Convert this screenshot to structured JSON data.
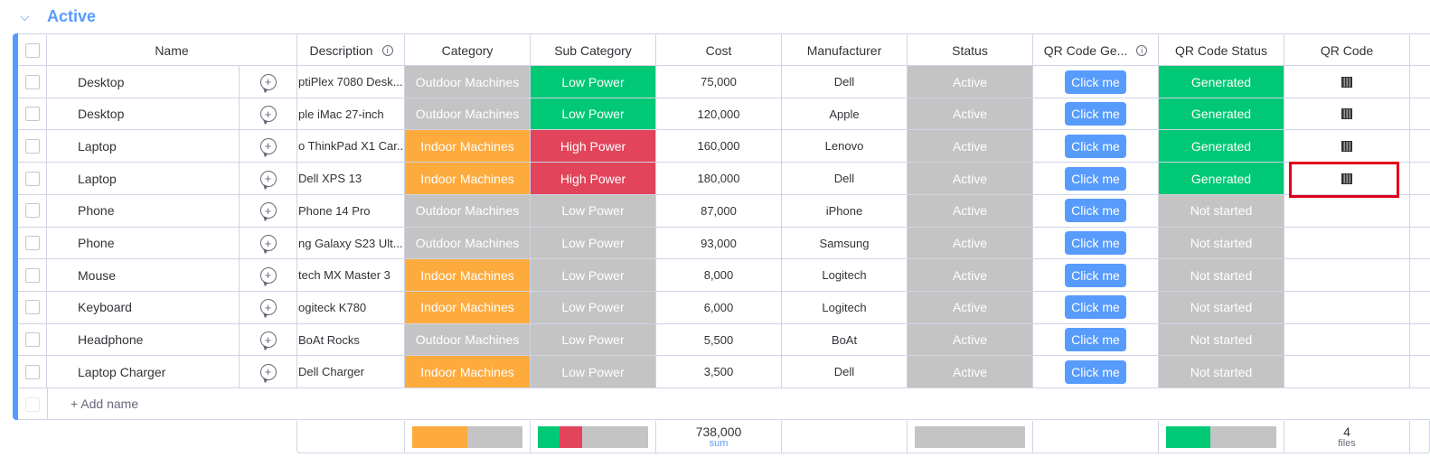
{
  "group": {
    "title": "Active",
    "color": "#579bfc"
  },
  "columns": {
    "name": "Name",
    "description": "Description",
    "category": "Category",
    "sub_category": "Sub Category",
    "cost": "Cost",
    "manufacturer": "Manufacturer",
    "status": "Status",
    "qr_gen": "QR Code Ge...",
    "qr_status": "QR Code Status",
    "qr_code": "QR Code"
  },
  "colors": {
    "outdoor": "#c4c4c4",
    "indoor": "#fdab3d",
    "low_power_green": "#00c875",
    "high_power": "#e2445c",
    "low_power_grey": "#c4c4c4",
    "active": "#c4c4c4",
    "generated": "#00c875",
    "not_started": "#c4c4c4",
    "button": "#579bfc",
    "highlight": "#e2001a"
  },
  "rows": [
    {
      "name": "Desktop",
      "description": "ptiPlex 7080 Desk...",
      "category": "Outdoor Machines",
      "cat_color": "#c4c4c4",
      "sub": "Low Power",
      "sub_color": "#00c875",
      "cost": "75,000",
      "manufacturer": "Dell",
      "status": "Active",
      "button": "Click me",
      "qr_status": "Generated",
      "qrs_color": "#00c875",
      "has_qr": true
    },
    {
      "name": "Desktop",
      "description": "ple iMac 27-inch",
      "category": "Outdoor Machines",
      "cat_color": "#c4c4c4",
      "sub": "Low Power",
      "sub_color": "#00c875",
      "cost": "120,000",
      "manufacturer": "Apple",
      "status": "Active",
      "button": "Click me",
      "qr_status": "Generated",
      "qrs_color": "#00c875",
      "has_qr": true
    },
    {
      "name": "Laptop",
      "description": "o ThinkPad X1 Car...",
      "category": "Indoor Machines",
      "cat_color": "#fdab3d",
      "sub": "High Power",
      "sub_color": "#e2445c",
      "cost": "160,000",
      "manufacturer": "Lenovo",
      "status": "Active",
      "button": "Click me",
      "qr_status": "Generated",
      "qrs_color": "#00c875",
      "has_qr": true
    },
    {
      "name": "Laptop",
      "description": "Dell XPS 13",
      "category": "Indoor Machines",
      "cat_color": "#fdab3d",
      "sub": "High Power",
      "sub_color": "#e2445c",
      "cost": "180,000",
      "manufacturer": "Dell",
      "status": "Active",
      "button": "Click me",
      "qr_status": "Generated",
      "qrs_color": "#00c875",
      "has_qr": true
    },
    {
      "name": "Phone",
      "description": "Phone 14 Pro",
      "category": "Outdoor Machines",
      "cat_color": "#c4c4c4",
      "sub": "Low Power",
      "sub_color": "#c4c4c4",
      "cost": "87,000",
      "manufacturer": "iPhone",
      "status": "Active",
      "button": "Click me",
      "qr_status": "Not started",
      "qrs_color": "#c4c4c4",
      "has_qr": false
    },
    {
      "name": "Phone",
      "description": "ng Galaxy S23 Ult...",
      "category": "Outdoor Machines",
      "cat_color": "#c4c4c4",
      "sub": "Low Power",
      "sub_color": "#c4c4c4",
      "cost": "93,000",
      "manufacturer": "Samsung",
      "status": "Active",
      "button": "Click me",
      "qr_status": "Not started",
      "qrs_color": "#c4c4c4",
      "has_qr": false
    },
    {
      "name": "Mouse",
      "description": "tech MX Master 3",
      "category": "Indoor Machines",
      "cat_color": "#fdab3d",
      "sub": "Low Power",
      "sub_color": "#c4c4c4",
      "cost": "8,000",
      "manufacturer": "Logitech",
      "status": "Active",
      "button": "Click me",
      "qr_status": "Not started",
      "qrs_color": "#c4c4c4",
      "has_qr": false
    },
    {
      "name": "Keyboard",
      "description": "ogiteck K780",
      "category": "Indoor Machines",
      "cat_color": "#fdab3d",
      "sub": "Low Power",
      "sub_color": "#c4c4c4",
      "cost": "6,000",
      "manufacturer": "Logitech",
      "status": "Active",
      "button": "Click me",
      "qr_status": "Not started",
      "qrs_color": "#c4c4c4",
      "has_qr": false
    },
    {
      "name": "Headphone",
      "description": "BoAt Rocks",
      "category": "Outdoor Machines",
      "cat_color": "#c4c4c4",
      "sub": "Low Power",
      "sub_color": "#c4c4c4",
      "cost": "5,500",
      "manufacturer": "BoAt",
      "status": "Active",
      "button": "Click me",
      "qr_status": "Not started",
      "qrs_color": "#c4c4c4",
      "has_qr": false
    },
    {
      "name": "Laptop Charger",
      "description": "Dell Charger",
      "category": "Indoor Machines",
      "cat_color": "#fdab3d",
      "sub": "Low Power",
      "sub_color": "#c4c4c4",
      "cost": "3,500",
      "manufacturer": "Dell",
      "status": "Active",
      "button": "Click me",
      "qr_status": "Not started",
      "qrs_color": "#c4c4c4",
      "has_qr": false
    }
  ],
  "add_row": {
    "label": "+ Add name"
  },
  "summary": {
    "category_split": [
      {
        "color": "#fdab3d",
        "fraction": 0.5
      },
      {
        "color": "#c4c4c4",
        "fraction": 0.5
      }
    ],
    "sub_split": [
      {
        "color": "#00c875",
        "fraction": 0.2
      },
      {
        "color": "#e2445c",
        "fraction": 0.2
      },
      {
        "color": "#c4c4c4",
        "fraction": 0.6
      }
    ],
    "cost_total": "738,000",
    "cost_label": "sum",
    "status_split": [
      {
        "color": "#c4c4c4",
        "fraction": 1.0
      }
    ],
    "qrs_split": [
      {
        "color": "#00c875",
        "fraction": 0.4
      },
      {
        "color": "#c4c4c4",
        "fraction": 0.6
      }
    ],
    "files_count": "4",
    "files_label": "files"
  }
}
